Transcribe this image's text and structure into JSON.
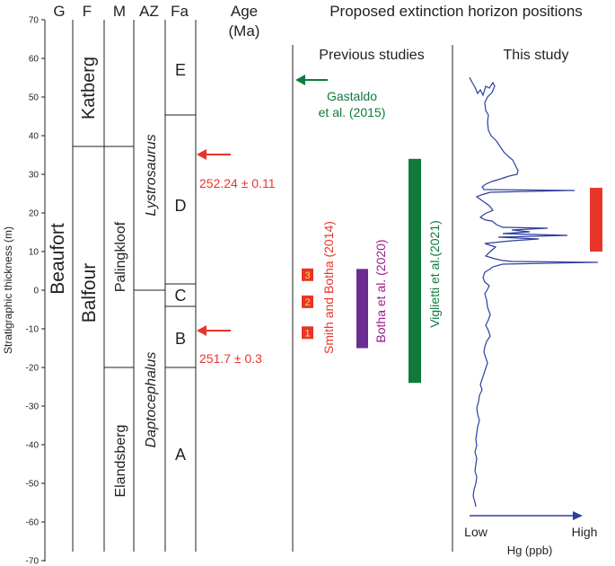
{
  "headers": {
    "group": "G",
    "formation": "F",
    "member": "M",
    "assemblage_zone": "AZ",
    "faunal_unit": "Fa",
    "age": "Age",
    "age_unit": "(Ma)",
    "panel_title": "Proposed extinction horizon positions",
    "previous_studies": "Previous studies",
    "this_study": "This study"
  },
  "axis": {
    "label": "Stratigraphic thickness (m)",
    "min": -70,
    "max": 70,
    "ticks": [
      "70",
      "60",
      "50",
      "40",
      "30",
      "20",
      "10",
      "0",
      "-10",
      "-20",
      "-30",
      "-40",
      "-50",
      "-60",
      "-70"
    ]
  },
  "stratigraphy": {
    "group": "Beaufort",
    "formations": [
      "Katberg",
      "Balfour"
    ],
    "members": [
      "Palingkloof",
      "Elandsberg"
    ],
    "assemblage_zones": [
      "Lystrosaurus",
      "Daptocephalus"
    ],
    "faunal_units": [
      "E",
      "D",
      "C",
      "B",
      "A"
    ]
  },
  "ages": [
    {
      "label": "252.24 ± 0.11",
      "height_m": 35
    },
    {
      "label": "251.7 ± 0.3",
      "height_m": -10
    }
  ],
  "previous_studies": [
    {
      "label": "Gastaldo",
      "label2": "et al. (2015)",
      "height_m": 55,
      "color": "#0f7a3c"
    },
    {
      "label": "Smith and Botha (2014)",
      "color": "#e8352a",
      "horizons": [
        {
          "n": "3",
          "height_m": 4
        },
        {
          "n": "2",
          "height_m": -3
        },
        {
          "n": "1",
          "height_m": -11
        }
      ]
    },
    {
      "label": "Botha et al. (2020)",
      "from_m": -15,
      "to_m": 5.5,
      "color": "#6a2c91"
    },
    {
      "label": "Viglietti et al.(2021)",
      "from_m": -24,
      "to_m": 34,
      "color": "#0f7a3c"
    }
  ],
  "this_study": {
    "interval_from_m": 10,
    "interval_to_m": 26.5,
    "color": "#e8352a",
    "x_low": "Low",
    "x_high": "High",
    "xlabel": "Hg (ppb)"
  }
}
